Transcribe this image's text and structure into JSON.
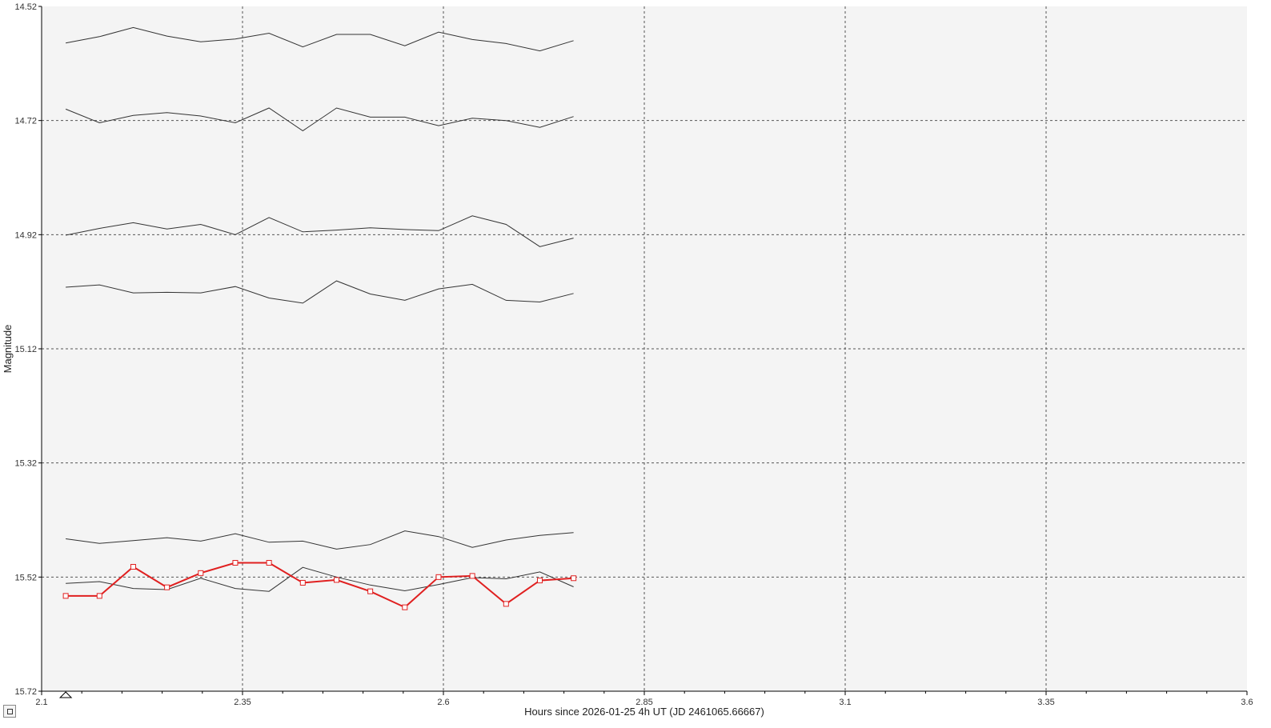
{
  "chart_data": {
    "type": "line",
    "xlabel": "Hours since 2026-01-25 4h UT (JD 2461065.66667)",
    "ylabel": "Magnitude",
    "xlim": [
      2.1,
      3.6
    ],
    "ylim": [
      14.52,
      15.72
    ],
    "y_inverted": true,
    "x_ticks": [
      "2.1",
      "2.35",
      "2.6",
      "2.85",
      "3.1",
      "3.35",
      "3.6"
    ],
    "y_ticks": [
      "14.52",
      "14.72",
      "14.92",
      "15.12",
      "15.32",
      "15.52",
      "15.72"
    ],
    "grid": true,
    "x": [
      2.13,
      2.172,
      2.214,
      2.256,
      2.298,
      2.341,
      2.383,
      2.425,
      2.467,
      2.509,
      2.552,
      2.594,
      2.636,
      2.678,
      2.72,
      2.762
    ],
    "series": [
      {
        "color": "#333333",
        "values": [
          14.584,
          14.573,
          14.557,
          14.572,
          14.582,
          14.577,
          14.567,
          14.591,
          14.569,
          14.569,
          14.589,
          14.565,
          14.578,
          14.585,
          14.598,
          14.58
        ]
      },
      {
        "color": "#333333",
        "values": [
          14.7,
          14.724,
          14.711,
          14.706,
          14.712,
          14.724,
          14.698,
          14.738,
          14.698,
          14.714,
          14.714,
          14.729,
          14.716,
          14.72,
          14.732,
          14.713
        ]
      },
      {
        "color": "#333333",
        "values": [
          14.921,
          14.909,
          14.899,
          14.91,
          14.902,
          14.92,
          14.89,
          14.915,
          14.912,
          14.908,
          14.911,
          14.913,
          14.887,
          14.902,
          14.941,
          14.926
        ]
      },
      {
        "color": "#333333",
        "values": [
          15.012,
          15.008,
          15.022,
          15.021,
          15.022,
          15.011,
          15.031,
          15.04,
          15.001,
          15.024,
          15.035,
          15.015,
          15.007,
          15.035,
          15.038,
          15.023
        ]
      },
      {
        "color": "#333333",
        "values": [
          15.453,
          15.461,
          15.456,
          15.451,
          15.457,
          15.444,
          15.459,
          15.457,
          15.471,
          15.463,
          15.439,
          15.449,
          15.468,
          15.455,
          15.447,
          15.442
        ]
      },
      {
        "color": "#333333",
        "values": [
          15.531,
          15.528,
          15.54,
          15.542,
          15.522,
          15.54,
          15.545,
          15.503,
          15.52,
          15.534,
          15.544,
          15.533,
          15.521,
          15.523,
          15.511,
          15.537
        ]
      },
      {
        "color": "#e02020",
        "markers": true,
        "values": [
          15.553,
          15.553,
          15.502,
          15.538,
          15.513,
          15.495,
          15.495,
          15.53,
          15.525,
          15.545,
          15.573,
          15.52,
          15.518,
          15.567,
          15.526,
          15.522
        ]
      }
    ],
    "marker_triangle_x": 2.13
  }
}
